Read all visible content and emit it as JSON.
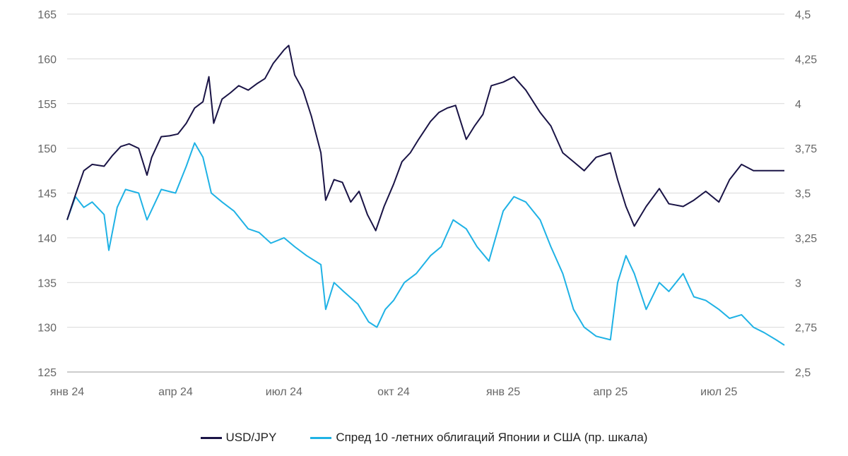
{
  "chart_data": {
    "type": "line",
    "title": "",
    "xlabel": "",
    "ylabel": "",
    "x_ticks": [
      "янв 24",
      "апр 24",
      "июл 24",
      "окт 24",
      "янв 25",
      "апр 25",
      "июл 25"
    ],
    "y_left": {
      "range": [
        125,
        165
      ],
      "ticks": [
        "125",
        "130",
        "135",
        "140",
        "145",
        "150",
        "155",
        "160",
        "165"
      ]
    },
    "y_right": {
      "range": [
        2.5,
        4.5
      ],
      "ticks": [
        "2,5",
        "2,75",
        "3",
        "3,25",
        "3,5",
        "3,75",
        "4",
        "4,25",
        "4,5"
      ]
    },
    "grid": true,
    "legend_position": "bottom",
    "series": [
      {
        "name": "USD/JPY",
        "axis": "left",
        "color": "#1a1446",
        "x": [
          "2024-01-01",
          "2024-01-08",
          "2024-01-15",
          "2024-01-22",
          "2024-02-01",
          "2024-02-08",
          "2024-02-15",
          "2024-02-22",
          "2024-03-01",
          "2024-03-08",
          "2024-03-12",
          "2024-03-20",
          "2024-03-27",
          "2024-04-03",
          "2024-04-10",
          "2024-04-17",
          "2024-04-24",
          "2024-04-29",
          "2024-05-03",
          "2024-05-10",
          "2024-05-17",
          "2024-05-24",
          "2024-06-01",
          "2024-06-08",
          "2024-06-15",
          "2024-06-22",
          "2024-07-01",
          "2024-07-05",
          "2024-07-10",
          "2024-07-17",
          "2024-07-24",
          "2024-08-01",
          "2024-08-05",
          "2024-08-12",
          "2024-08-19",
          "2024-08-26",
          "2024-09-02",
          "2024-09-09",
          "2024-09-16",
          "2024-09-23",
          "2024-10-01",
          "2024-10-08",
          "2024-10-15",
          "2024-10-22",
          "2024-11-01",
          "2024-11-08",
          "2024-11-15",
          "2024-11-22",
          "2024-12-01",
          "2024-12-08",
          "2024-12-15",
          "2024-12-22",
          "2025-01-01",
          "2025-01-10",
          "2025-01-20",
          "2025-02-01",
          "2025-02-10",
          "2025-02-20",
          "2025-03-01",
          "2025-03-10",
          "2025-03-20",
          "2025-04-01",
          "2025-04-07",
          "2025-04-14",
          "2025-04-21",
          "2025-05-01",
          "2025-05-12",
          "2025-05-20",
          "2025-06-01",
          "2025-06-10",
          "2025-06-20",
          "2025-07-01",
          "2025-07-10",
          "2025-07-20",
          "2025-07-30",
          "2025-08-08",
          "2025-08-18",
          "2025-08-25"
        ],
        "values": [
          142,
          144.8,
          147.5,
          148.2,
          148.0,
          149.2,
          150.2,
          150.5,
          150.0,
          147.0,
          149.0,
          151.3,
          151.4,
          151.6,
          152.8,
          154.5,
          155.2,
          158.0,
          152.8,
          155.5,
          156.2,
          157.0,
          156.5,
          157.2,
          157.8,
          159.5,
          161.0,
          161.5,
          158.2,
          156.5,
          153.6,
          149.5,
          144.2,
          146.5,
          146.2,
          144.0,
          145.2,
          142.6,
          140.8,
          143.5,
          146.0,
          148.5,
          149.5,
          151.0,
          153.0,
          154.0,
          154.5,
          154.8,
          151.0,
          152.5,
          153.8,
          157.0,
          157.4,
          158.0,
          156.5,
          154.0,
          152.5,
          149.5,
          148.5,
          147.5,
          149.0,
          149.5,
          146.5,
          143.5,
          141.3,
          143.5,
          145.5,
          143.8,
          143.5,
          144.2,
          145.2,
          144.0,
          146.5,
          148.2,
          147.5,
          147.5,
          147.5,
          147.5
        ]
      },
      {
        "name": "Спред 10 -летних облигаций Японии и США (пр. шкала)",
        "axis": "right",
        "color": "#1fb2e5",
        "x": [
          "2024-01-01",
          "2024-01-08",
          "2024-01-15",
          "2024-01-22",
          "2024-02-01",
          "2024-02-05",
          "2024-02-12",
          "2024-02-19",
          "2024-03-01",
          "2024-03-08",
          "2024-03-20",
          "2024-04-01",
          "2024-04-10",
          "2024-04-17",
          "2024-04-24",
          "2024-05-01",
          "2024-05-10",
          "2024-05-20",
          "2024-06-01",
          "2024-06-10",
          "2024-06-20",
          "2024-07-01",
          "2024-07-10",
          "2024-07-20",
          "2024-08-01",
          "2024-08-05",
          "2024-08-12",
          "2024-08-20",
          "2024-09-01",
          "2024-09-10",
          "2024-09-17",
          "2024-09-24",
          "2024-10-01",
          "2024-10-10",
          "2024-10-20",
          "2024-11-01",
          "2024-11-10",
          "2024-11-20",
          "2024-12-01",
          "2024-12-10",
          "2024-12-20",
          "2025-01-01",
          "2025-01-10",
          "2025-01-20",
          "2025-02-01",
          "2025-02-10",
          "2025-02-20",
          "2025-03-01",
          "2025-03-10",
          "2025-03-20",
          "2025-04-01",
          "2025-04-07",
          "2025-04-14",
          "2025-04-21",
          "2025-05-01",
          "2025-05-12",
          "2025-05-20",
          "2025-06-01",
          "2025-06-10",
          "2025-06-20",
          "2025-07-01",
          "2025-07-10",
          "2025-07-20",
          "2025-07-30",
          "2025-08-08",
          "2025-08-18",
          "2025-08-25"
        ],
        "values": [
          3.35,
          3.48,
          3.42,
          3.45,
          3.38,
          3.18,
          3.42,
          3.52,
          3.5,
          3.35,
          3.52,
          3.5,
          3.65,
          3.78,
          3.7,
          3.5,
          3.45,
          3.4,
          3.3,
          3.28,
          3.22,
          3.25,
          3.2,
          3.15,
          3.1,
          2.85,
          3.0,
          2.95,
          2.88,
          2.78,
          2.75,
          2.85,
          2.9,
          3.0,
          3.05,
          3.15,
          3.2,
          3.35,
          3.3,
          3.2,
          3.12,
          3.4,
          3.48,
          3.45,
          3.35,
          3.2,
          3.05,
          2.85,
          2.75,
          2.7,
          2.68,
          3.0,
          3.15,
          3.05,
          2.85,
          3.0,
          2.95,
          3.05,
          2.92,
          2.9,
          2.85,
          2.8,
          2.82,
          2.75,
          2.72,
          2.68,
          2.65
        ]
      }
    ]
  }
}
